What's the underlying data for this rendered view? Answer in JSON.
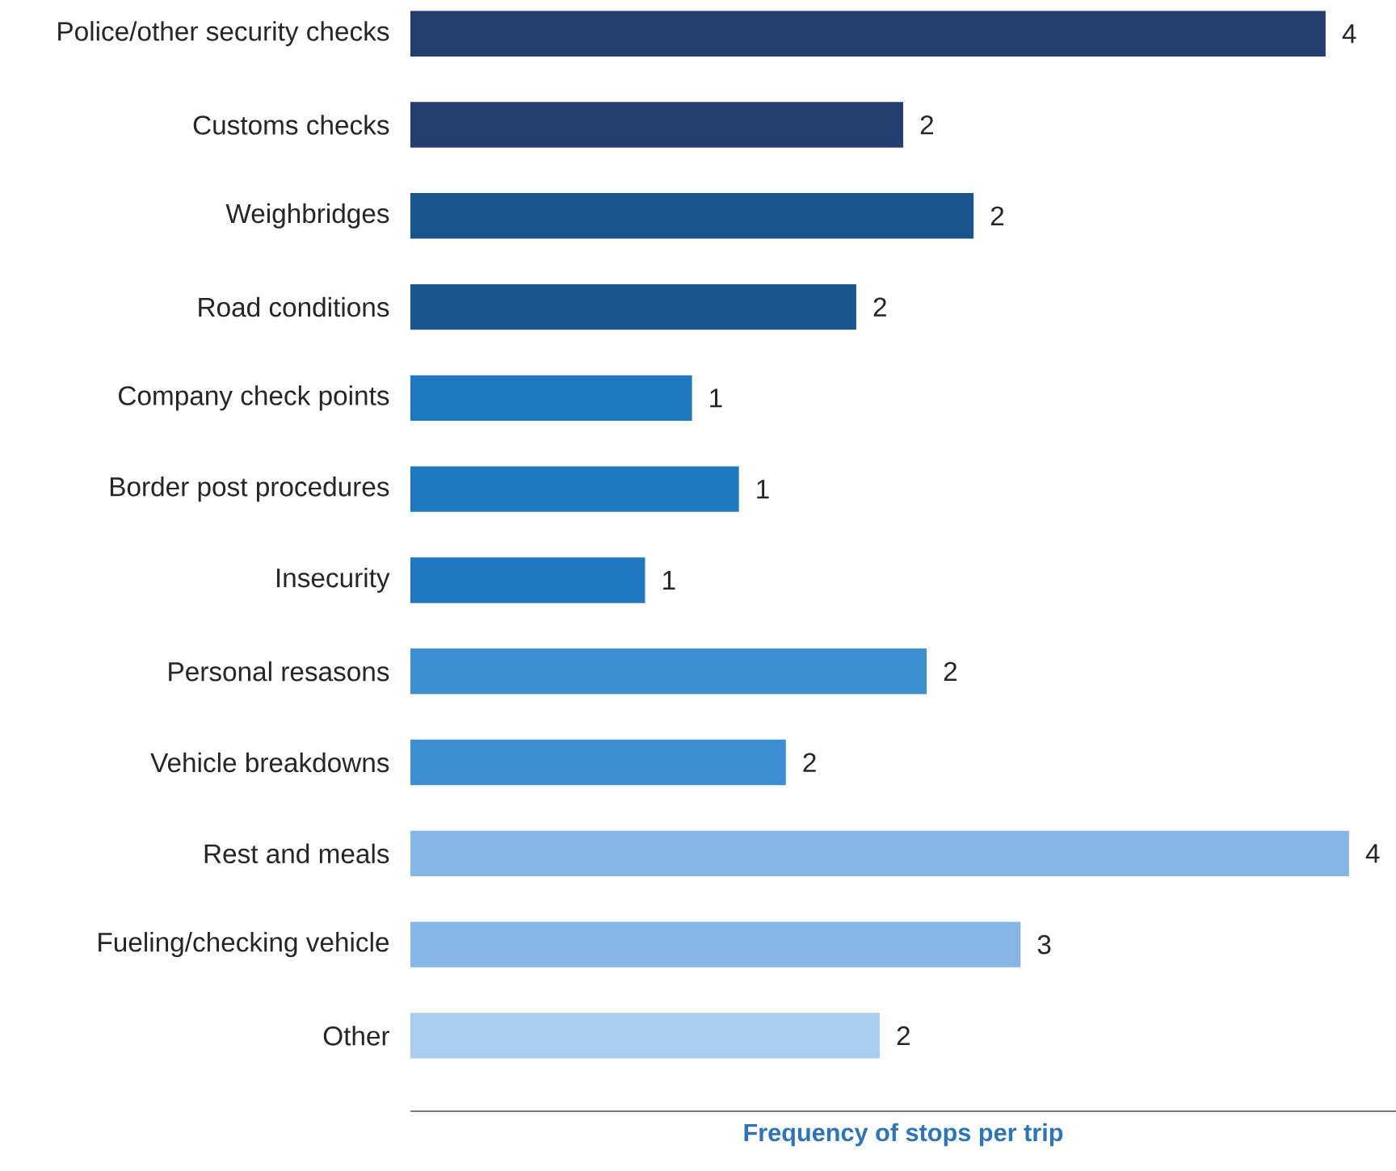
{
  "chart_data": {
    "type": "bar",
    "orientation": "horizontal",
    "xlabel": "Frequency of stops per trip",
    "categories": [
      "Police/other security checks",
      "Customs checks",
      "Weighbridges",
      "Road conditions",
      "Company check points",
      "Border post procedures",
      "Insecurity",
      "Personal resasons",
      "Vehicle breakdowns",
      "Rest and meals",
      "Fueling/checking vehicle",
      "Other"
    ],
    "values": [
      3.9,
      2.1,
      2.4,
      1.9,
      1.2,
      1.4,
      1.0,
      2.2,
      1.6,
      4.0,
      2.6,
      2.0
    ],
    "value_labels": [
      "4",
      "2",
      "2",
      "2",
      "1",
      "1",
      "1",
      "2",
      "2",
      "4",
      "3",
      "2"
    ],
    "colors": [
      "#253e70",
      "#253e70",
      "#1a548e",
      "#1a548e",
      "#1f78c0",
      "#1f78c0",
      "#1f78c0",
      "#3d8fd1",
      "#3d8fd1",
      "#85b6e4",
      "#85b6e4",
      "#abcdee"
    ]
  }
}
